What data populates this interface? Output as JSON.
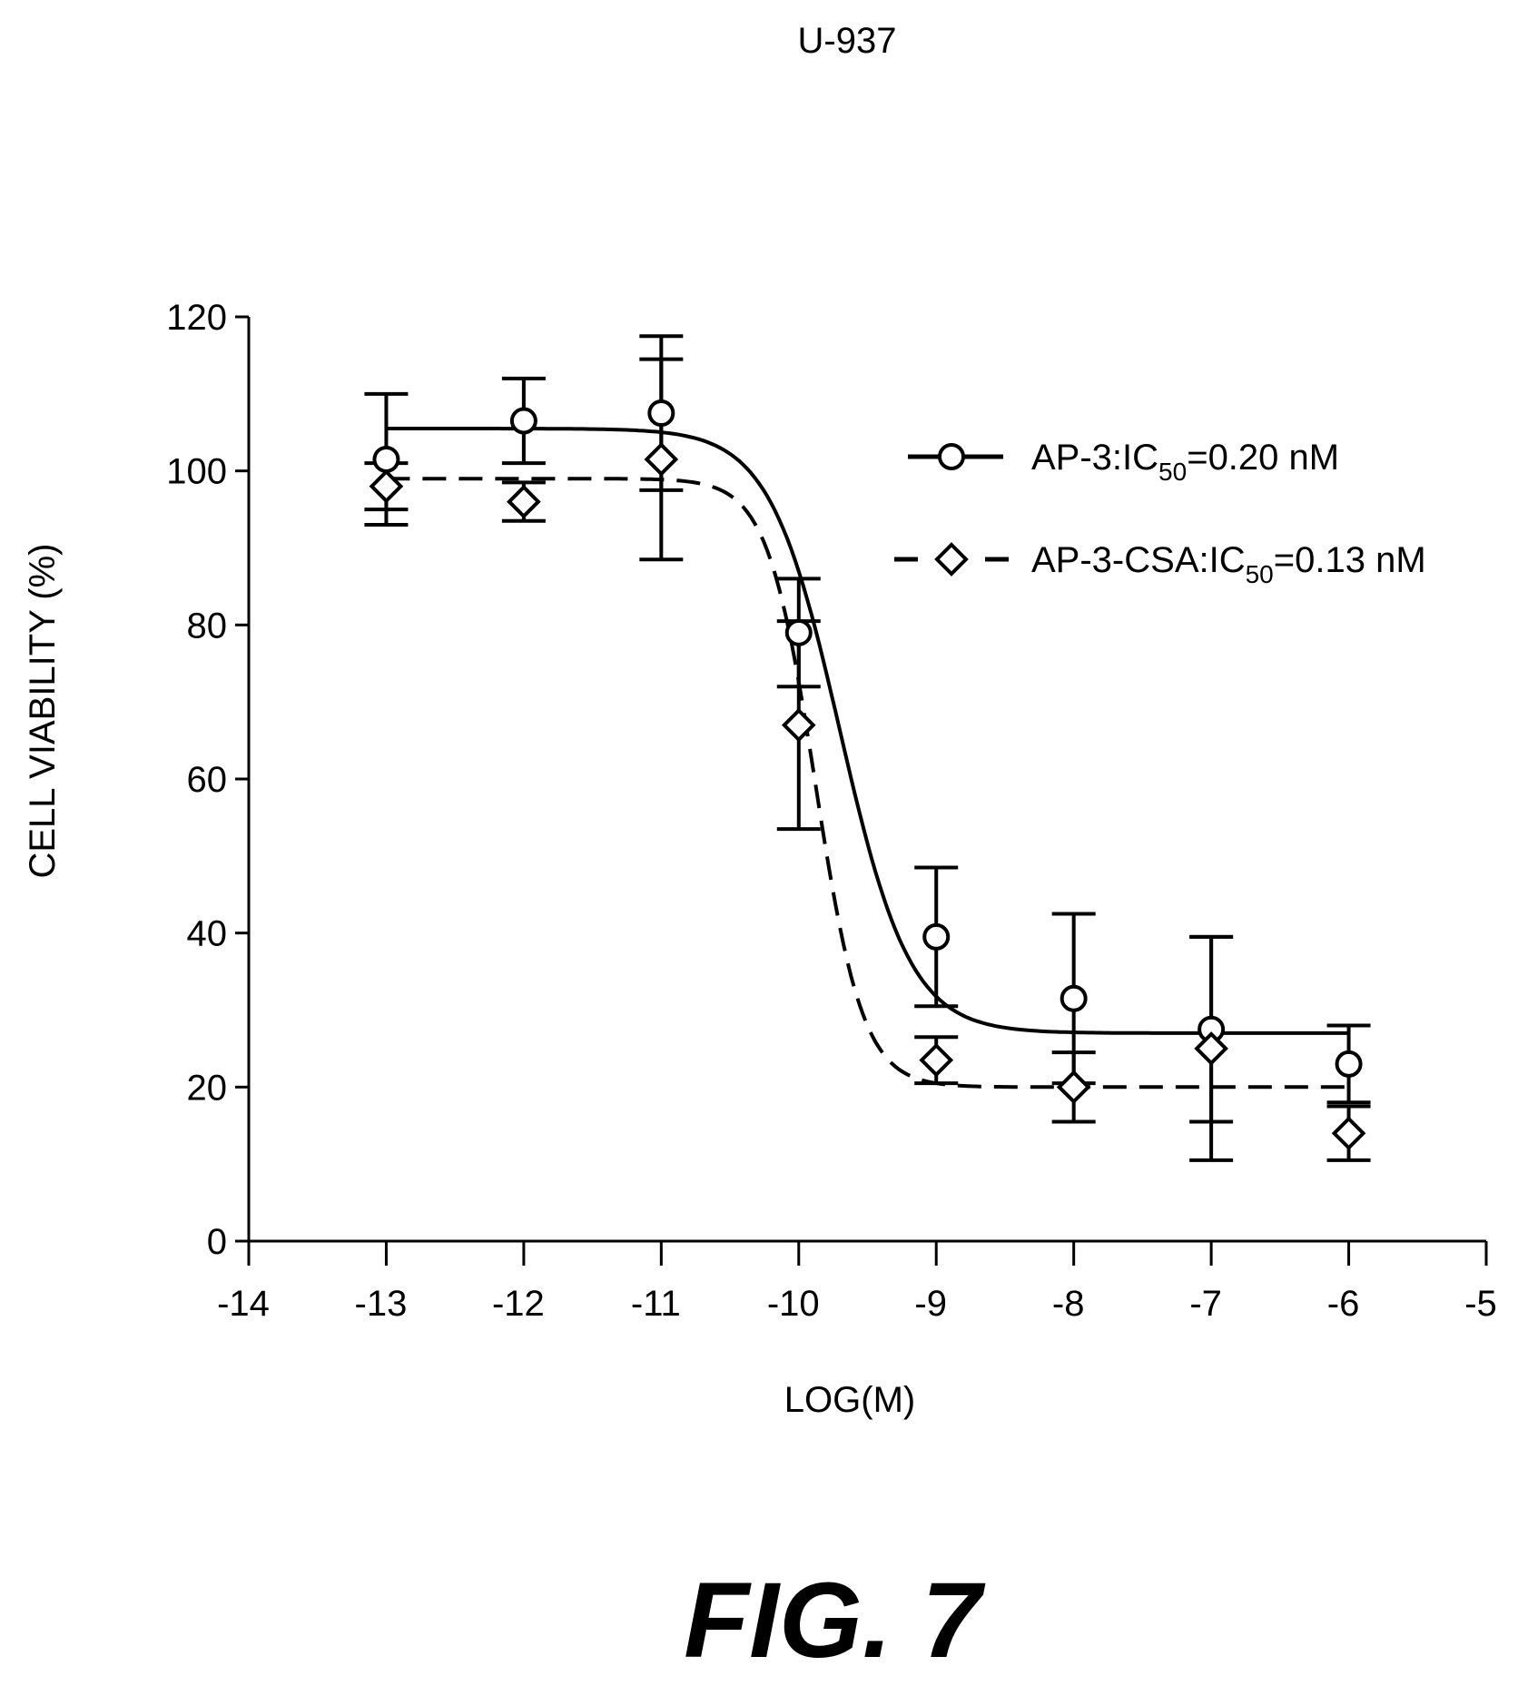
{
  "chart_data": {
    "type": "scatter",
    "title": "U-937",
    "xlabel": "LOG(M)",
    "ylabel": "CELL VIABILITY (%)",
    "xlim": [
      -14,
      -5
    ],
    "ylim": [
      0,
      120
    ],
    "x_ticks": [
      -14,
      -13,
      -12,
      -11,
      -10,
      -9,
      -8,
      -7,
      -6,
      -5
    ],
    "y_ticks": [
      0,
      20,
      40,
      60,
      80,
      100,
      120
    ],
    "grid": false,
    "legend_position": "top-right",
    "series": [
      {
        "legend_prefix": "AP-3:IC",
        "legend_sub": "50",
        "legend_suffix": "=0.20 nM",
        "marker": "circle",
        "line_style": "solid",
        "x": [
          -13,
          -12,
          -11,
          -10,
          -9,
          -8,
          -7,
          -6
        ],
        "y": [
          101.5,
          106.5,
          107.5,
          79,
          39.5,
          31.5,
          27.5,
          23
        ],
        "error": [
          8.5,
          5.5,
          10,
          7,
          9,
          11,
          12,
          5
        ],
        "fit": {
          "top": 105.5,
          "bottom": 27,
          "log_ic50": -9.7,
          "hill": 1.7
        }
      },
      {
        "legend_prefix": "AP-3-CSA:IC",
        "legend_sub": "50",
        "legend_suffix": "=0.13 nM",
        "marker": "diamond",
        "line_style": "dashed",
        "x": [
          -13,
          -12,
          -11,
          -10,
          -9,
          -8,
          -7,
          -6
        ],
        "y": [
          98,
          96,
          101.5,
          67,
          23.5,
          20,
          25,
          14
        ],
        "error": [
          3,
          2.5,
          13,
          13.5,
          3,
          4.5,
          14.5,
          3.5
        ],
        "fit": {
          "top": 99,
          "bottom": 20,
          "log_ic50": -9.88,
          "hill": 2.5
        }
      }
    ]
  },
  "figure_caption": "FIG. 7"
}
